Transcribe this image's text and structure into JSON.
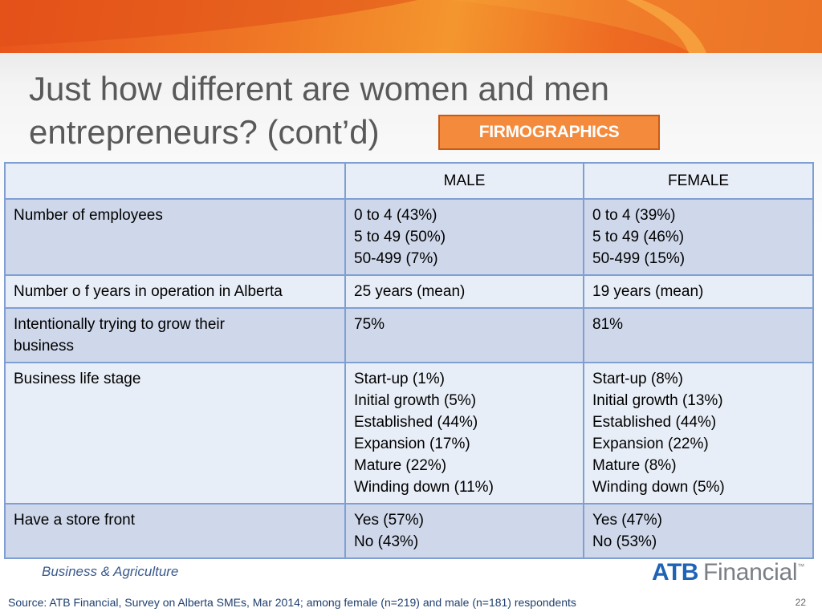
{
  "title": "Just how different are women and men entrepreneurs? (cont’d)",
  "badge": "FIRMOGRAPHICS",
  "table": {
    "headers": [
      "",
      "MALE",
      "FEMALE"
    ],
    "rows": [
      {
        "label": "Number of employees",
        "male": [
          "0 to 4 (43%)",
          "5 to 49 (50%)",
          "50-499 (7%)"
        ],
        "female": [
          "0 to 4 (39%)",
          "5 to 49 (46%)",
          "50-499 (15%)"
        ]
      },
      {
        "label": "Number o f years in operation in Alberta",
        "male": [
          "25 years (mean)"
        ],
        "female": [
          "19 years (mean)"
        ]
      },
      {
        "label": "Intentionally trying to grow their business",
        "male": [
          "75%"
        ],
        "female": [
          "81%"
        ]
      },
      {
        "label": "Business life stage",
        "male": [
          "Start-up (1%)",
          "Initial growth (5%)",
          "Established (44%)",
          "Expansion (17%)",
          "Mature (22%)",
          "Winding down (11%)"
        ],
        "female": [
          "Start-up (8%)",
          "Initial growth (13%)",
          "Established (44%)",
          "Expansion (22%)",
          "Mature (8%)",
          "Winding down (5%)"
        ]
      },
      {
        "label": "Have a store front",
        "male": [
          "Yes (57%)",
          "No (43%)"
        ],
        "female": [
          "Yes (47%)",
          "No (53%)"
        ]
      }
    ]
  },
  "footer": {
    "section": "Business & Agriculture",
    "logo_primary": "ATB",
    "logo_secondary": "Financial",
    "logo_tm": "™",
    "source": "Source:  ATB Financial, Survey on Alberta SMEs, Mar 2014; among female (n=219) and male (n=181) respondents",
    "page_number": "22"
  },
  "colors": {
    "banner": "#f07a26",
    "badge": "#f48a3c",
    "table_border": "#7f9fd3",
    "row_alt": "#cfd8ea",
    "row_plain": "#e8eef7",
    "logo_blue": "#1f63b6"
  }
}
